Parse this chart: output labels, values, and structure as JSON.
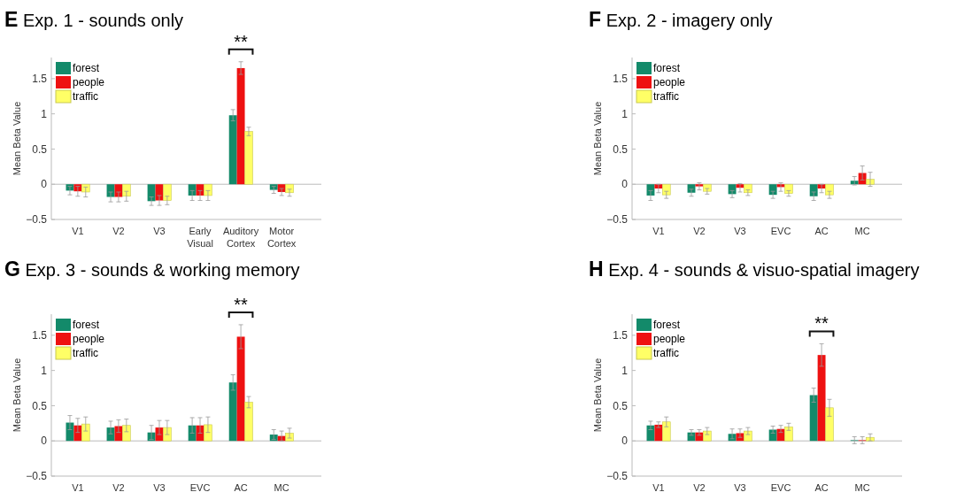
{
  "chart_data": [
    {
      "type": "bar",
      "title": "E Exp. 1 - sounds only",
      "ylabel": "Mean Beta Value",
      "categories": [
        "V1",
        "V2",
        "V3",
        "Early Visual",
        "Auditory Cortex",
        "Motor Cortex"
      ],
      "ylim": [
        -0.5,
        1.8
      ],
      "yticks": [
        -0.5,
        0,
        0.5,
        1,
        1.5
      ],
      "legend": "top left",
      "grid": false,
      "series": [
        {
          "name": "forest",
          "color": "#138a6a",
          "values": [
            -0.09,
            -0.18,
            -0.24,
            -0.16,
            0.98,
            -0.08
          ],
          "errors": [
            0.06,
            0.07,
            0.06,
            0.07,
            0.08,
            0.05
          ]
        },
        {
          "name": "people",
          "color": "#ee1111",
          "values": [
            -0.1,
            -0.18,
            -0.23,
            -0.16,
            1.65,
            -0.11
          ],
          "errors": [
            0.07,
            0.07,
            0.07,
            0.07,
            0.09,
            0.05
          ]
        },
        {
          "name": "traffic",
          "color": "#ffff66",
          "values": [
            -0.11,
            -0.17,
            -0.23,
            -0.16,
            0.75,
            -0.12
          ],
          "errors": [
            0.07,
            0.07,
            0.06,
            0.07,
            0.06,
            0.05
          ]
        }
      ],
      "annotations": [
        "**"
      ],
      "ref_lines": [
        {
          "axis": "y",
          "value": 0
        }
      ]
    },
    {
      "type": "bar",
      "title": "F Exp. 2 - imagery only",
      "ylabel": "Mean Beta Value",
      "categories": [
        "V1",
        "V2",
        "V3",
        "EVC",
        "AC",
        "MC"
      ],
      "ylim": [
        -0.5,
        1.8
      ],
      "yticks": [
        -0.5,
        0,
        0.5,
        1,
        1.5
      ],
      "legend": "top left",
      "grid": false,
      "series": [
        {
          "name": "forest",
          "color": "#138a6a",
          "values": [
            -0.16,
            -0.12,
            -0.14,
            -0.15,
            -0.17,
            0.05
          ],
          "errors": [
            0.07,
            0.05,
            0.05,
            0.05,
            0.06,
            0.06
          ]
        },
        {
          "name": "people",
          "color": "#ee1111",
          "values": [
            -0.06,
            -0.03,
            -0.05,
            -0.04,
            -0.06,
            0.16
          ],
          "errors": [
            0.06,
            0.05,
            0.06,
            0.06,
            0.06,
            0.1
          ]
        },
        {
          "name": "traffic",
          "color": "#ffff66",
          "values": [
            -0.15,
            -0.1,
            -0.12,
            -0.13,
            -0.15,
            0.07
          ],
          "errors": [
            0.05,
            0.04,
            0.04,
            0.04,
            0.05,
            0.1
          ]
        }
      ],
      "ref_lines": [
        {
          "axis": "y",
          "value": 0
        }
      ]
    },
    {
      "type": "bar",
      "title": "G Exp. 3 - sounds & working memory",
      "ylabel": "Mean Beta Value",
      "categories": [
        "V1",
        "V2",
        "V3",
        "EVC",
        "AC",
        "MC"
      ],
      "ylim": [
        -0.5,
        1.8
      ],
      "yticks": [
        -0.5,
        0,
        0.5,
        1,
        1.5
      ],
      "legend": "top left",
      "grid": false,
      "series": [
        {
          "name": "forest",
          "color": "#138a6a",
          "values": [
            0.26,
            0.19,
            0.12,
            0.22,
            0.83,
            0.09
          ],
          "errors": [
            0.1,
            0.09,
            0.1,
            0.11,
            0.11,
            0.07
          ]
        },
        {
          "name": "people",
          "color": "#ee1111",
          "values": [
            0.22,
            0.21,
            0.19,
            0.22,
            1.48,
            0.07
          ],
          "errors": [
            0.1,
            0.09,
            0.1,
            0.11,
            0.17,
            0.07
          ]
        },
        {
          "name": "traffic",
          "color": "#ffff66",
          "values": [
            0.24,
            0.22,
            0.19,
            0.23,
            0.55,
            0.11
          ],
          "errors": [
            0.1,
            0.09,
            0.1,
            0.11,
            0.08,
            0.07
          ]
        }
      ],
      "annotations": [
        "**"
      ],
      "ref_lines": [
        {
          "axis": "y",
          "value": 0
        }
      ]
    },
    {
      "type": "bar",
      "title": "H Exp. 4 - sounds & visuo-spatial imagery",
      "ylabel": "Mean Beta Value",
      "categories": [
        "V1",
        "V2",
        "V3",
        "EVC",
        "AC",
        "MC"
      ],
      "ylim": [
        -0.5,
        1.8
      ],
      "yticks": [
        -0.5,
        0,
        0.5,
        1,
        1.5
      ],
      "legend": "top left",
      "grid": false,
      "series": [
        {
          "name": "forest",
          "color": "#138a6a",
          "values": [
            0.22,
            0.12,
            0.1,
            0.16,
            0.65,
            0.01
          ],
          "errors": [
            0.06,
            0.04,
            0.07,
            0.05,
            0.1,
            0.05
          ]
        },
        {
          "name": "people",
          "color": "#ee1111",
          "values": [
            0.23,
            0.12,
            0.11,
            0.17,
            1.22,
            0.01
          ],
          "errors": [
            0.04,
            0.04,
            0.06,
            0.05,
            0.16,
            0.05
          ]
        },
        {
          "name": "traffic",
          "color": "#ffff66",
          "values": [
            0.27,
            0.14,
            0.14,
            0.2,
            0.47,
            0.05
          ],
          "errors": [
            0.07,
            0.05,
            0.05,
            0.05,
            0.12,
            0.05
          ]
        }
      ],
      "annotations": [
        "**"
      ],
      "ref_lines": [
        {
          "axis": "y",
          "value": 0
        }
      ]
    }
  ]
}
